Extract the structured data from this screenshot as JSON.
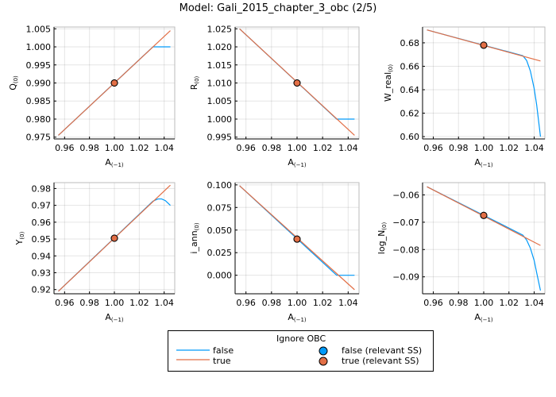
{
  "title": "Model: Gali_2015_chapter_3_obc  (2/5)",
  "colors": {
    "false": "#009AFA",
    "true": "#E26F46"
  },
  "legend": {
    "title": "Ignore OBC",
    "entries": [
      {
        "label": "false",
        "kind": "line",
        "color": "#009AFA"
      },
      {
        "label": "true",
        "kind": "line",
        "color": "#E26F46"
      },
      {
        "label": "false (relevant SS)",
        "kind": "marker",
        "color": "#009AFA"
      },
      {
        "label": "true (relevant SS)",
        "kind": "marker",
        "color": "#E26F46"
      }
    ],
    "placement": "bottom-center"
  },
  "chart_data": [
    {
      "type": "line",
      "xlabel": "A",
      "xlabel_sub": "(−1)",
      "ylabel": "Q",
      "ylabel_sub": "(0)",
      "xlim": [
        0.9515,
        1.0485
      ],
      "ylim": [
        0.9745,
        1.0055
      ],
      "xticks": [
        0.96,
        0.98,
        1.0,
        1.02,
        1.04
      ],
      "xtick_labels": [
        "0.96",
        "0.98",
        "1.00",
        "1.02",
        "1.04"
      ],
      "yticks": [
        0.975,
        0.98,
        0.985,
        0.99,
        0.995,
        1.0,
        1.005
      ],
      "ytick_labels": [
        "0.975",
        "0.980",
        "0.985",
        "0.990",
        "0.995",
        "1.000",
        "1.005"
      ],
      "grid": true,
      "series": [
        {
          "name": "false",
          "x": [
            0.955,
            1.031,
            1.045
          ],
          "y": [
            0.9755,
            1.0,
            1.0
          ]
        },
        {
          "name": "true",
          "x": [
            0.955,
            1.045
          ],
          "y": [
            0.9755,
            1.0045
          ]
        }
      ],
      "ss_point": {
        "x": 1.0,
        "y": 0.99
      }
    },
    {
      "type": "line",
      "xlabel": "A",
      "xlabel_sub": "(−1)",
      "ylabel": "R",
      "ylabel_sub": "(0)",
      "xlim": [
        0.9515,
        1.0485
      ],
      "ylim": [
        0.9945,
        1.0255
      ],
      "xticks": [
        0.96,
        0.98,
        1.0,
        1.02,
        1.04
      ],
      "xtick_labels": [
        "0.96",
        "0.98",
        "1.00",
        "1.02",
        "1.04"
      ],
      "yticks": [
        0.995,
        1.0,
        1.005,
        1.01,
        1.015,
        1.02,
        1.025
      ],
      "ytick_labels": [
        "0.995",
        "1.000",
        "1.005",
        "1.010",
        "1.015",
        "1.020",
        "1.025"
      ],
      "grid": true,
      "series": [
        {
          "name": "false",
          "x": [
            0.955,
            1.031,
            1.045
          ],
          "y": [
            1.025,
            1.0,
            1.0
          ]
        },
        {
          "name": "true",
          "x": [
            0.955,
            1.045
          ],
          "y": [
            1.025,
            0.9955
          ]
        }
      ],
      "ss_point": {
        "x": 1.0,
        "y": 1.01
      }
    },
    {
      "type": "line",
      "xlabel": "A",
      "xlabel_sub": "(−1)",
      "ylabel": "W_real",
      "ylabel_sub": "(0)",
      "xlim": [
        0.9515,
        1.0485
      ],
      "ylim": [
        0.598,
        0.6935
      ],
      "xticks": [
        0.96,
        0.98,
        1.0,
        1.02,
        1.04
      ],
      "xtick_labels": [
        "0.96",
        "0.98",
        "1.00",
        "1.02",
        "1.04"
      ],
      "yticks": [
        0.6,
        0.62,
        0.64,
        0.66,
        0.68
      ],
      "ytick_labels": [
        "0.60",
        "0.62",
        "0.64",
        "0.66",
        "0.68"
      ],
      "grid": true,
      "series": [
        {
          "name": "false",
          "x": [
            0.955,
            1.031,
            1.034,
            1.037,
            1.04,
            1.042,
            1.045
          ],
          "y": [
            0.691,
            0.669,
            0.665,
            0.656,
            0.641,
            0.627,
            0.6
          ]
        },
        {
          "name": "true",
          "x": [
            0.955,
            1.045
          ],
          "y": [
            0.691,
            0.6645
          ]
        }
      ],
      "ss_point": {
        "x": 1.0,
        "y": 0.678
      }
    },
    {
      "type": "line",
      "xlabel": "A",
      "xlabel_sub": "(−1)",
      "ylabel": "Y",
      "ylabel_sub": "(0)",
      "xlim": [
        0.9515,
        1.0485
      ],
      "ylim": [
        0.9175,
        0.9835
      ],
      "xticks": [
        0.96,
        0.98,
        1.0,
        1.02,
        1.04
      ],
      "xtick_labels": [
        "0.96",
        "0.98",
        "1.00",
        "1.02",
        "1.04"
      ],
      "yticks": [
        0.92,
        0.93,
        0.94,
        0.95,
        0.96,
        0.97,
        0.98
      ],
      "ytick_labels": [
        "0.92",
        "0.93",
        "0.94",
        "0.95",
        "0.96",
        "0.97",
        "0.98"
      ],
      "grid": true,
      "series": [
        {
          "name": "false",
          "x": [
            0.955,
            1.031,
            1.035,
            1.038,
            1.041,
            1.045
          ],
          "y": [
            0.919,
            0.9725,
            0.9738,
            0.9738,
            0.9728,
            0.97
          ]
        },
        {
          "name": "true",
          "x": [
            0.955,
            1.045
          ],
          "y": [
            0.919,
            0.982
          ]
        }
      ],
      "ss_point": {
        "x": 1.0,
        "y": 0.9505
      }
    },
    {
      "type": "line",
      "xlabel": "A",
      "xlabel_sub": "(−1)",
      "ylabel": "i_ann",
      "ylabel_sub": "(0)",
      "xlim": [
        0.9515,
        1.0485
      ],
      "ylim": [
        -0.0205,
        0.1025
      ],
      "xticks": [
        0.96,
        0.98,
        1.0,
        1.02,
        1.04
      ],
      "xtick_labels": [
        "0.96",
        "0.98",
        "1.00",
        "1.02",
        "1.04"
      ],
      "yticks": [
        0.0,
        0.025,
        0.05,
        0.075,
        0.1
      ],
      "ytick_labels": [
        "0.000",
        "0.025",
        "0.050",
        "0.075",
        "0.100"
      ],
      "grid": true,
      "series": [
        {
          "name": "false",
          "x": [
            0.955,
            1.031,
            1.045
          ],
          "y": [
            0.099,
            0.0,
            0.0
          ]
        },
        {
          "name": "true",
          "x": [
            0.955,
            1.045
          ],
          "y": [
            0.099,
            -0.016
          ]
        }
      ],
      "ss_point": {
        "x": 1.0,
        "y": 0.04
      }
    },
    {
      "type": "line",
      "xlabel": "A",
      "xlabel_sub": "(−1)",
      "ylabel": "log_N",
      "ylabel_sub": "(0)",
      "xlim": [
        0.9515,
        1.0485
      ],
      "ylim": [
        -0.0962,
        -0.0555
      ],
      "xticks": [
        0.96,
        0.98,
        1.0,
        1.02,
        1.04
      ],
      "xtick_labels": [
        "0.96",
        "0.98",
        "1.00",
        "1.02",
        "1.04"
      ],
      "yticks": [
        -0.09,
        -0.08,
        -0.07,
        -0.06
      ],
      "ytick_labels": [
        "−0.09",
        "−0.08",
        "−0.07",
        "−0.06"
      ],
      "grid": true,
      "series": [
        {
          "name": "false",
          "x": [
            0.955,
            1.031,
            1.034,
            1.037,
            1.04,
            1.042,
            1.045
          ],
          "y": [
            -0.057,
            -0.0747,
            -0.0765,
            -0.0795,
            -0.084,
            -0.0885,
            -0.095
          ]
        },
        {
          "name": "true",
          "x": [
            0.955,
            1.045
          ],
          "y": [
            -0.057,
            -0.0785
          ]
        }
      ],
      "ss_point": {
        "x": 1.0,
        "y": -0.0675
      }
    }
  ]
}
